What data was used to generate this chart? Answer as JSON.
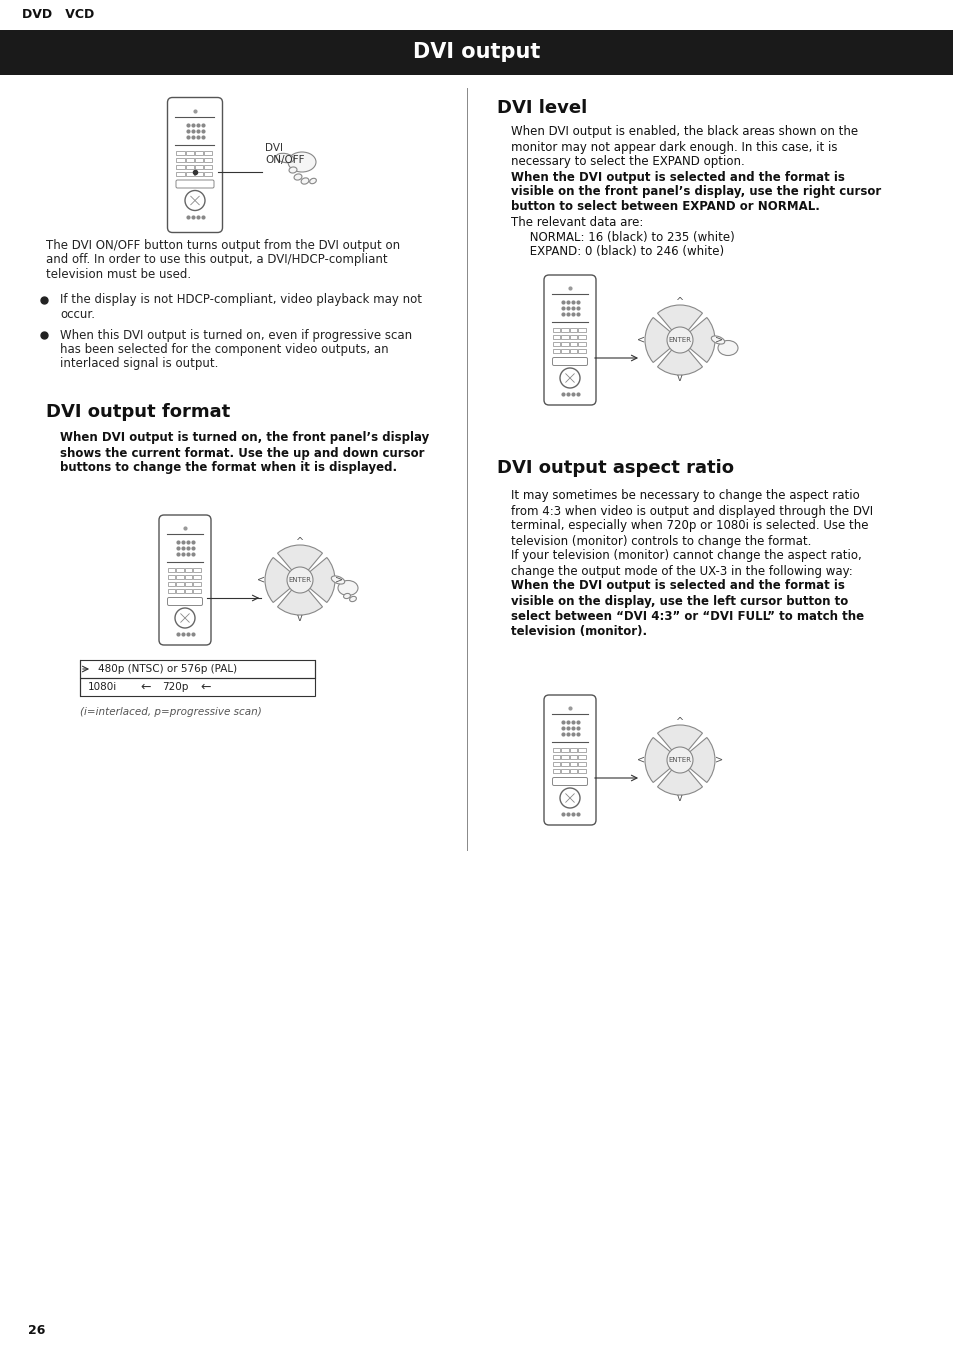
{
  "title": "DVI output",
  "header_label": "DVD   VCD",
  "bg_color": "#ffffff",
  "header_bg": "#1a1a1a",
  "header_text_color": "#ffffff",
  "page_num": "26",
  "section1_title": "DVI level",
  "section1_body": [
    "normal:When DVI output is enabled, the black areas shown on the",
    "normal:monitor may not appear dark enough. In this case, it is",
    "normal:necessary to select the EXPAND option.",
    "bold:When the DVI output is selected and the format is",
    "bold:visible on the front panel’s display, use the right cursor",
    "bold:button to select between EXPAND or NORMAL.",
    "normal:The relevant data are:",
    "normal:     NORMAL: 16 (black) to 235 (white)",
    "normal:     EXPAND: 0 (black) to 246 (white)"
  ],
  "section2_title": "DVI output format",
  "section2_bold_lines": [
    "When DVI output is turned on, the front panel’s display",
    "shows the current format. Use the up and down cursor",
    "buttons to change the format when it is displayed."
  ],
  "section2_note": "(i=interlaced, p=progressive scan)",
  "section3_title": "DVI output aspect ratio",
  "section3_body": [
    "normal:It may sometimes be necessary to change the aspect ratio",
    "normal:from 4:3 when video is output and displayed through the DVI",
    "normal:terminal, especially when 720p or 1080i is selected. Use the",
    "normal:television (monitor) controls to change the format.",
    "normal:If your television (monitor) cannot change the aspect ratio,",
    "normal:change the output mode of the UX-3 in the following way:",
    "bold:When the DVI output is selected and the format is",
    "bold:visible on the display, use the left cursor button to",
    "bold:select between “DVI 4:3” or “DVI FULL” to match the",
    "bold:television (monitor)."
  ],
  "bullet_text1_lines": [
    "If the display is not HDCP-compliant, video playback may not",
    "occur."
  ],
  "bullet_text2_lines": [
    "When this DVI output is turned on, even if progressive scan",
    "has been selected for the component video outputs, an",
    "interlaced signal is output."
  ],
  "intro_text_lines": [
    "The DVI ON/OFF button turns output from the DVI output on",
    "and off. In order to use this output, a DVI/HDCP-compliant",
    "television must be used."
  ]
}
